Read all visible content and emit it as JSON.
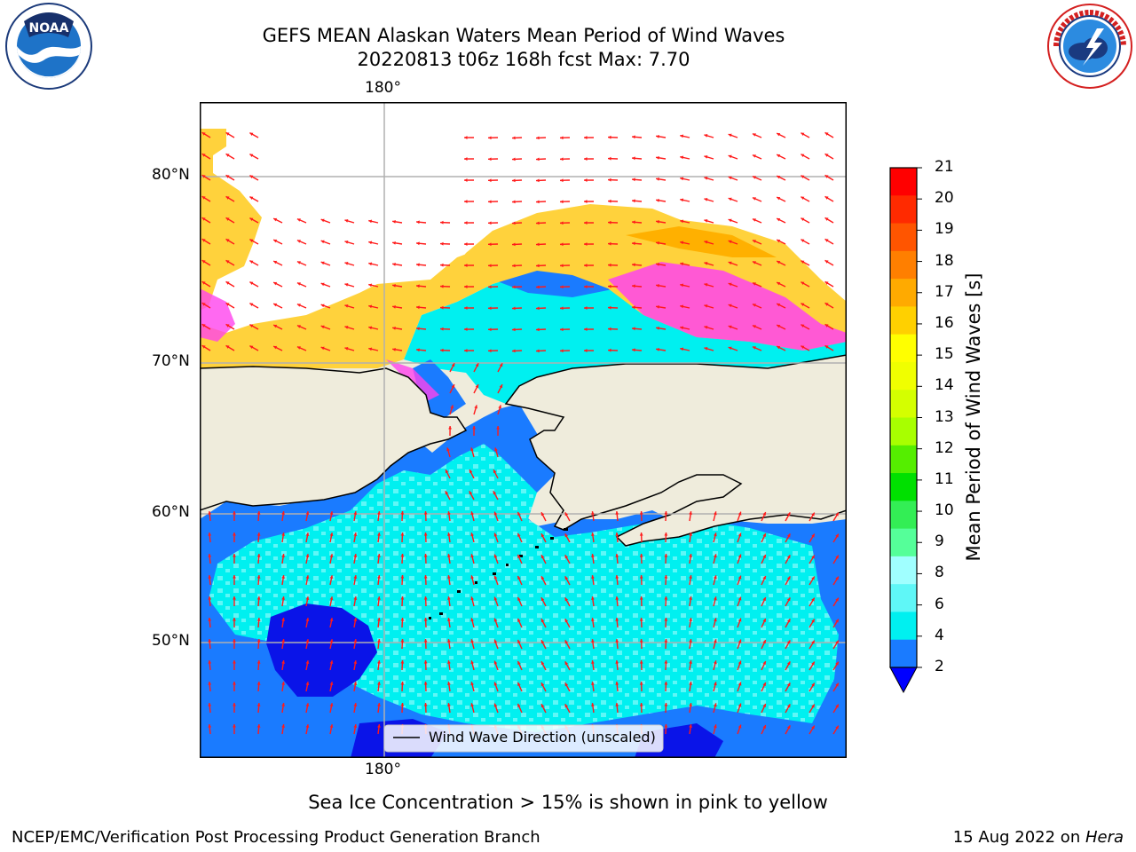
{
  "title": {
    "line1": "GEFS MEAN Alaskan Waters Mean Period of Wind Waves",
    "line2": "20220813 t06z 168h fcst   Max: 7.70"
  },
  "logos": {
    "left": "NOAA",
    "left_ring_text": "NATIONAL OCEANIC AND ATMOSPHERIC ADMINISTRATION · U.S. DEPARTMENT OF COMMERCE",
    "right_ring_text": "NATIONAL WEATHER SERVICE"
  },
  "map": {
    "lon_label_top": "180°",
    "lon_label_bottom": "180°",
    "lat_labels": [
      "80°N",
      "70°N",
      "60°N",
      "50°N"
    ],
    "legend_label": "Wind Wave Direction (unscaled)",
    "colors": {
      "land": "#efecdc",
      "ocean_low": "#1a7bff",
      "ocean_cyan": "#00f0f0",
      "ocean_lightcyan": "#5ff7f7",
      "ocean_deep": "#0a14e8",
      "ice_yellow": "#ffd23c",
      "ice_pink": "#ff44ee",
      "arrow": "#ff1a1a"
    }
  },
  "colorbar": {
    "label": "Mean Period of Wind Waves [s]",
    "ticks": [
      "21",
      "20",
      "19",
      "18",
      "17",
      "16",
      "15",
      "14",
      "13",
      "12",
      "11",
      "10",
      "9",
      "8",
      "6",
      "4",
      "2"
    ],
    "colors": [
      "#ff0000",
      "#ff2a00",
      "#ff5500",
      "#ff7f00",
      "#ffaa00",
      "#ffd000",
      "#ffff00",
      "#f0ff00",
      "#d4ff00",
      "#a8ff00",
      "#55ee00",
      "#00e000",
      "#33ee55",
      "#55ff99",
      "#a0ffff",
      "#5ff7f7",
      "#00f0f0",
      "#1a7bff"
    ],
    "extend_color": "#0000ff"
  },
  "subtitle": "Sea Ice Concentration > 15% is shown in pink to yellow",
  "footer": {
    "left": "NCEP/EMC/Verification Post Processing Product Generation Branch",
    "right_date": "15 Aug 2022 on ",
    "right_machine": "Hera"
  }
}
